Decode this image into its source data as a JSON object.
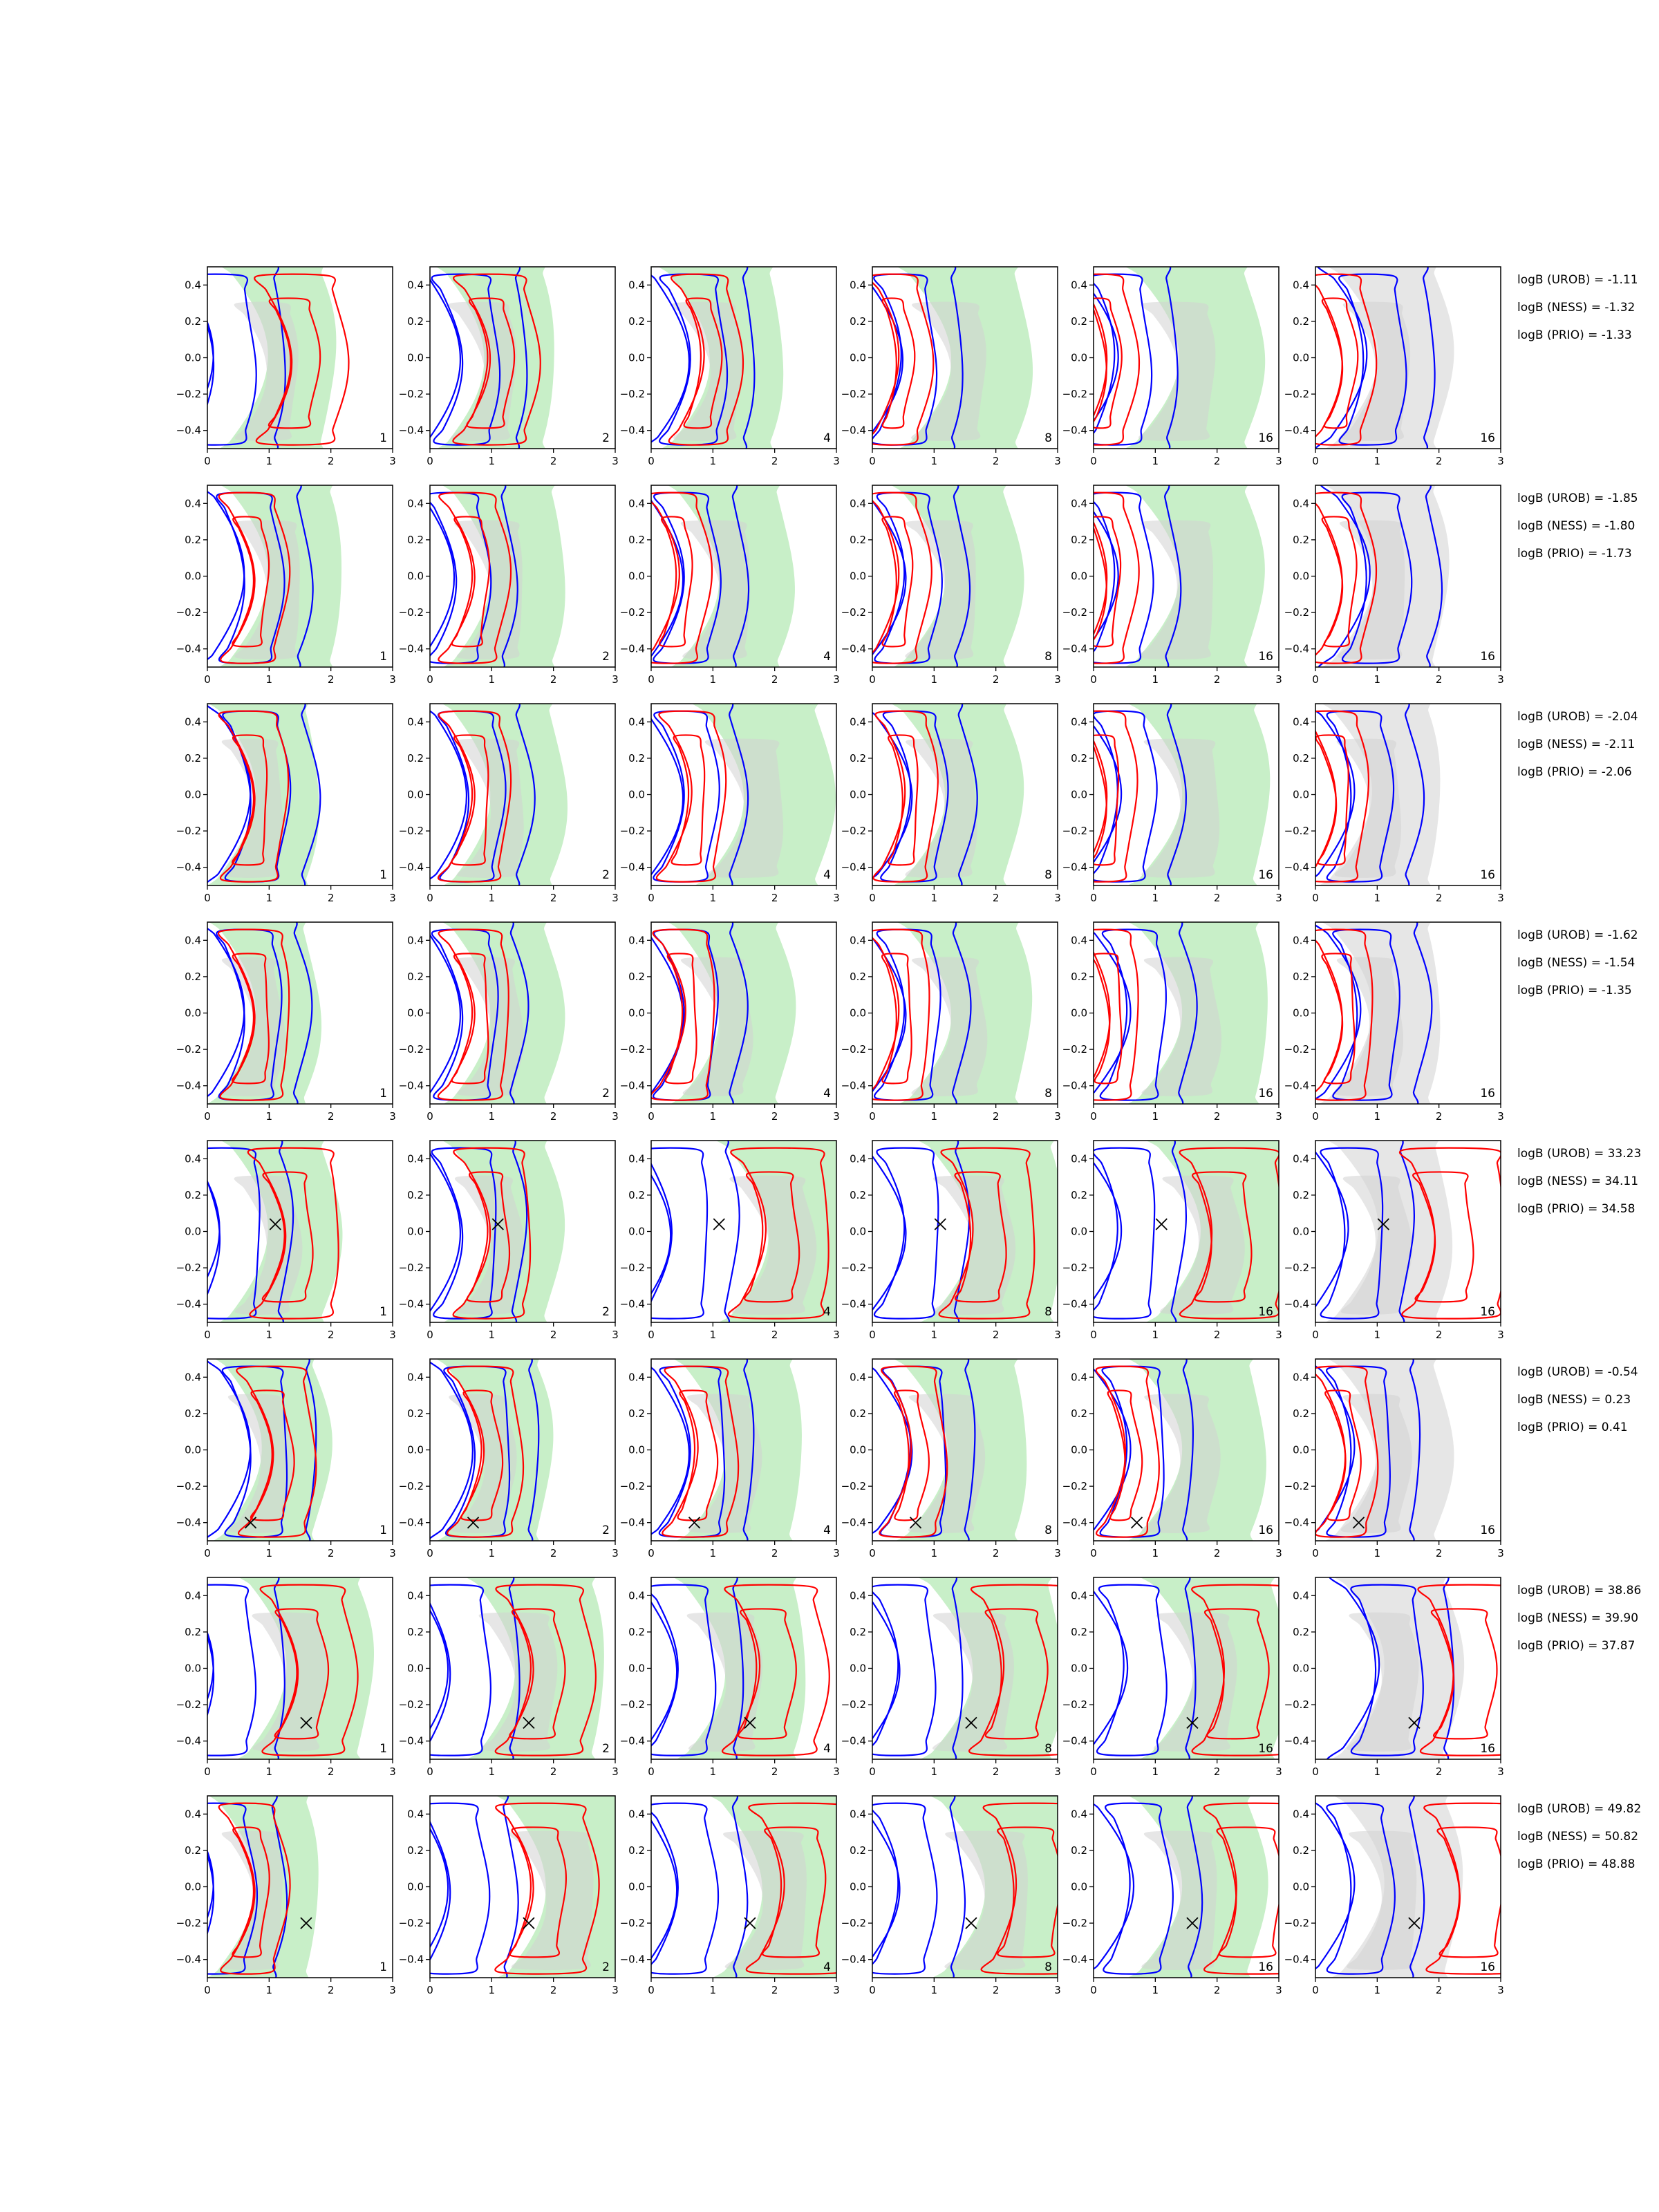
{
  "chart_data": {
    "type": "contour",
    "xlim": [
      0,
      3
    ],
    "ylim": [
      -0.5,
      0.5
    ],
    "x_ticks": [
      "0",
      "1",
      "2",
      "3"
    ],
    "y_ticks": [
      "0.4",
      "0.2",
      "0.0",
      "−0.2",
      "−0.4"
    ],
    "grid": false,
    "colors": {
      "blue": "#0000ff",
      "red": "#ff0000",
      "green_fill": "#c8efc8",
      "grey_fill": "#e6e6e6",
      "inner_fill": "#d2d2d2"
    },
    "panel_labels": [
      "1",
      "2",
      "4",
      "8",
      "16",
      "16"
    ],
    "rows": [
      {
        "logb": [
          "logB (UROB) = -1.11",
          "logB (NESS) = -1.32",
          "logB (PRIO) = -1.33"
        ],
        "cross": null,
        "cols": [
          {
            "green": [
              0.2,
              0.4
            ],
            "blue": [
              -0.6,
              0.6
            ],
            "red": [
              0.5,
              0.8
            ]
          },
          {
            "green": [
              0.1,
              0.5
            ],
            "blue": [
              -0.2,
              0.3
            ],
            "red": [
              0.1,
              0.6
            ]
          },
          {
            "green": [
              0.15,
              0.6
            ],
            "blue": [
              -0.1,
              0.3
            ],
            "red": [
              0,
              0.2
            ]
          },
          {
            "green": [
              0.45,
              0.8
            ],
            "blue": [
              -0.25,
              0.1
            ],
            "red": [
              -0.4,
              0
            ]
          },
          {
            "green": [
              0.55,
              0.9
            ],
            "blue": [
              -0.35,
              0.1
            ],
            "red": [
              -0.6,
              -0.1
            ]
          },
          {
            "green": [
              0.2,
              0.6
            ],
            "blue": [
              0.1,
              0.5
            ],
            "red": [
              -0.4,
              0
            ]
          }
        ]
      },
      {
        "logb": [
          "logB (UROB) = -1.85",
          "logB (NESS) = -1.80",
          "logB (PRIO) = -1.73"
        ],
        "cross": null,
        "cols": [
          {
            "green": [
              0.2,
              0.6
            ],
            "blue": [
              -0.1,
              0.3
            ],
            "red": [
              -0.1,
              0.1
            ]
          },
          {
            "green": [
              0.2,
              0.6
            ],
            "blue": [
              -0.3,
              0
            ],
            "red": [
              -0.15,
              0.15
            ]
          },
          {
            "green": [
              0.3,
              0.6
            ],
            "blue": [
              -0.2,
              0.2
            ],
            "red": [
              -0.4,
              0
            ]
          },
          {
            "green": [
              0.35,
              0.7
            ],
            "blue": [
              -0.2,
              0.2
            ],
            "red": [
              -0.4,
              -0.05
            ]
          },
          {
            "green": [
              0.55,
              0.9
            ],
            "blue": [
              -0.35,
              0.15
            ],
            "red": [
              -0.6,
              -0.1
            ]
          },
          {
            "green": [
              0.15,
              0.6
            ],
            "blue": [
              0.15,
              0.6
            ],
            "red": [
              -0.4,
              0
            ]
          }
        ]
      },
      {
        "logb": [
          "logB (UROB) = -2.04",
          "logB (NESS) = -2.11",
          "logB (PRIO) = -2.06"
        ],
        "cross": null,
        "cols": [
          {
            "green": [
              0,
              0.3
            ],
            "blue": [
              0,
              0.3
            ],
            "red": [
              -0.1,
              0.1
            ]
          },
          {
            "green": [
              0.2,
              0.6
            ],
            "blue": [
              -0.1,
              0.2
            ],
            "red": [
              -0.15,
              0.2
            ]
          },
          {
            "green": [
              0.7,
              1.0
            ],
            "blue": [
              -0.2,
              0.1
            ],
            "red": [
              -0.2,
              0.1
            ]
          },
          {
            "green": [
              0.35,
              0.7
            ],
            "blue": [
              -0.1,
              0.2
            ],
            "red": [
              -0.3,
              0
            ]
          },
          {
            "green": [
              0.6,
              1.0
            ],
            "blue": [
              -0.3,
              0.2
            ],
            "red": [
              -0.6,
              -0.1
            ]
          },
          {
            "green": [
              0.1,
              0.5
            ],
            "blue": [
              -0.1,
              0.4
            ],
            "red": [
              -0.5,
              0
            ]
          }
        ]
      },
      {
        "logb": [
          "logB (UROB) = -1.62",
          "logB (NESS) = -1.54",
          "logB (PRIO) = -1.35"
        ],
        "cross": null,
        "cols": [
          {
            "green": [
              0,
              0.3
            ],
            "blue": [
              -0.1,
              0.2
            ],
            "red": [
              -0.1,
              0.2
            ]
          },
          {
            "green": [
              0.2,
              0.5
            ],
            "blue": [
              -0.2,
              0.2
            ],
            "red": [
              -0.15,
              0.2
            ]
          },
          {
            "green": [
              0.3,
              0.6
            ],
            "blue": [
              -0.2,
              0.1
            ],
            "red": [
              -0.3,
              0
            ]
          },
          {
            "green": [
              0.45,
              0.8
            ],
            "blue": [
              -0.2,
              0.2
            ],
            "red": [
              -0.4,
              0
            ]
          },
          {
            "green": [
              0.6,
              1.0
            ],
            "blue": [
              -0.15,
              0.3
            ],
            "red": [
              -0.55,
              -0.1
            ]
          },
          {
            "green": [
              0.1,
              0.5
            ],
            "blue": [
              0,
              0.5
            ],
            "red": [
              -0.4,
              0
            ]
          }
        ]
      },
      {
        "logb": [
          "logB (UROB) = 33.23",
          "logB (NESS) = 34.11",
          "logB (PRIO) = 34.58"
        ],
        "cross": {
          "x": 1.1,
          "y": 0.04
        },
        "cols": [
          {
            "green": [
              0.2,
              0.5
            ],
            "blue": [
              -0.5,
              0.6
            ],
            "red": [
              0.4,
              0.8
            ]
          },
          {
            "green": [
              0.2,
              0.5
            ],
            "blue": [
              -0.2,
              0.2
            ],
            "red": [
              0.1,
              0.4
            ]
          },
          {
            "green": [
              1.1,
              1.3
            ],
            "blue": [
              -0.4,
              0.4
            ],
            "red": [
              1.0,
              1.1
            ]
          },
          {
            "green": [
              0.8,
              1.1
            ],
            "blue": [
              -0.2,
              0.2
            ],
            "red": [
              0.8,
              1.0
            ]
          },
          {
            "green": [
              0.9,
              1.2
            ],
            "blue": [
              -0.3,
              0.3
            ],
            "red": [
              1.1,
              1.3
            ]
          },
          {
            "green": [
              0.2,
              0.6
            ],
            "blue": [
              -0.2,
              0.3
            ],
            "red": [
              1.1,
              1.3
            ]
          }
        ]
      },
      {
        "logb": [
          "logB (UROB) = -0.54",
          "logB (NESS) = 0.23",
          "logB (PRIO) = 0.41"
        ],
        "cross": {
          "x": 0.7,
          "y": -0.4
        },
        "cols": [
          {
            "green": [
              0.1,
              0.4
            ],
            "blue": [
              0,
              0.3
            ],
            "red": [
              0.2,
              0.4
            ]
          },
          {
            "green": [
              0.1,
              0.4
            ],
            "blue": [
              0,
              0.3
            ],
            "red": [
              0,
              0.3
            ]
          },
          {
            "green": [
              0.4,
              0.7
            ],
            "blue": [
              -0.1,
              0.3
            ],
            "red": [
              -0.1,
              0.3
            ]
          },
          {
            "green": [
              0.4,
              0.8
            ],
            "blue": [
              -0.1,
              0.3
            ],
            "red": [
              -0.2,
              0.1
            ]
          },
          {
            "green": [
              0.6,
              0.9
            ],
            "blue": [
              -0.15,
              0.3
            ],
            "red": [
              -0.3,
              0
            ]
          },
          {
            "green": [
              0.2,
              0.6
            ],
            "blue": [
              -0.1,
              0.4
            ],
            "red": [
              -0.35,
              0
            ]
          }
        ]
      },
      {
        "logb": [
          "logB (UROB) = 38.86",
          "logB (NESS) = 39.90",
          "logB (PRIO) = 37.87"
        ],
        "cross": {
          "x": 1.6,
          "y": -0.3
        },
        "cols": [
          {
            "green": [
              0.5,
              0.9
            ],
            "blue": [
              -0.6,
              0.6
            ],
            "red": [
              0.6,
              0.9
            ]
          },
          {
            "green": [
              0.6,
              1.0
            ],
            "blue": [
              -0.4,
              0.6
            ],
            "red": [
              0.8,
              1.0
            ]
          },
          {
            "green": [
              0.4,
              0.8
            ],
            "blue": [
              -0.3,
              0.4
            ],
            "red": [
              0.9,
              1.2
            ]
          },
          {
            "green": [
              0.8,
              1.1
            ],
            "blue": [
              -0.3,
              0.3
            ],
            "red": [
              1.3,
              1.5
            ]
          },
          {
            "green": [
              0.8,
              1.2
            ],
            "blue": [
              -0.2,
              0.6
            ],
            "red": [
              1.3,
              1.5
            ]
          },
          {
            "green": [
              0.3,
              0.7
            ],
            "blue": [
              0.3,
              0.9
            ],
            "red": [
              1.4,
              1.5
            ]
          }
        ]
      },
      {
        "logb": [
          "logB (UROB) = 49.82",
          "logB (NESS) = 50.82",
          "logB (PRIO) = 48.88"
        ],
        "cross": {
          "x": 1.6,
          "y": -0.2
        },
        "cols": [
          {
            "green": [
              0,
              0.3
            ],
            "blue": [
              -0.6,
              0.6
            ],
            "red": [
              -0.1,
              0.1
            ]
          },
          {
            "green": [
              1.1,
              1.4
            ],
            "blue": [
              -0.4,
              0.4
            ],
            "red": [
              0.8,
              1.1
            ]
          },
          {
            "green": [
              1.0,
              1.3
            ],
            "blue": [
              -0.3,
              0.5
            ],
            "red": [
              1.3,
              1.5
            ]
          },
          {
            "green": [
              1.0,
              1.3
            ],
            "blue": [
              -0.3,
              0.3
            ],
            "red": [
              1.5,
              1.6
            ]
          },
          {
            "green": [
              0.6,
              0.9
            ],
            "blue": [
              -0.1,
              0.5
            ],
            "red": [
              1.5,
              1.6
            ]
          },
          {
            "green": [
              0.3,
              0.7
            ],
            "blue": [
              -0.1,
              0.5
            ],
            "red": [
              1.5,
              1.6
            ]
          }
        ]
      }
    ]
  }
}
